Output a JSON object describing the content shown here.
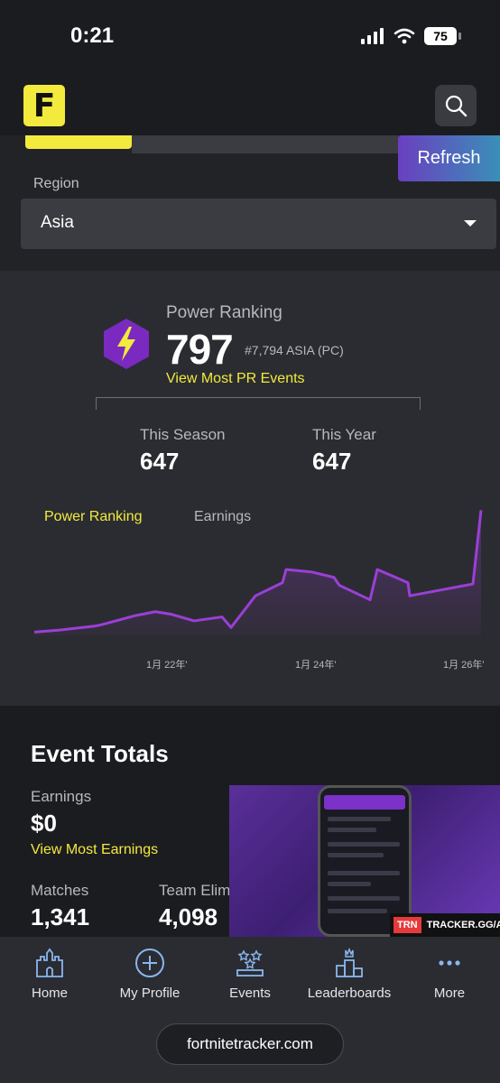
{
  "status_bar": {
    "time": "0:21",
    "battery": "75"
  },
  "header": {
    "logo_letter": "F"
  },
  "refresh_label": "Refresh",
  "region": {
    "label": "Region",
    "value": "Asia"
  },
  "power_ranking": {
    "title": "Power Ranking",
    "value": "797",
    "rank": "#7,794 ASIA (PC)",
    "link": "View Most PR Events",
    "season_label": "This Season",
    "season_value": "647",
    "year_label": "This Year",
    "year_value": "647",
    "tabs": [
      "Power Ranking",
      "Earnings"
    ],
    "accent_color": "#f2ea3c",
    "line_color": "#9b3fd6"
  },
  "chart_data": {
    "type": "line",
    "x_tick_labels": [
      "1月 22年'",
      "1月 24年'",
      "1月 26年'"
    ],
    "series": [
      {
        "values": [
          5,
          8,
          14,
          16,
          30,
          36,
          32,
          22,
          28,
          12,
          60,
          80,
          100,
          96,
          88,
          76,
          54,
          100,
          80,
          60,
          78,
          190
        ]
      }
    ]
  },
  "events": {
    "title": "Event Totals",
    "earnings_label": "Earnings",
    "earnings_value": "$0",
    "earnings_link": "View Most Earnings",
    "matches_label": "Matches",
    "matches_value": "1,341",
    "elims_label": "Team Elim",
    "elims_value": "4,098"
  },
  "ad": {
    "badge": "TRN",
    "url": "TRACKER.GG/APPS"
  },
  "nav": [
    {
      "label": "Home",
      "icon": "castle-icon"
    },
    {
      "label": "My Profile",
      "icon": "plus-circle-icon"
    },
    {
      "label": "Events",
      "icon": "events-icon"
    },
    {
      "label": "Leaderboards",
      "icon": "podium-icon"
    },
    {
      "label": "More",
      "icon": "more-dots-icon"
    }
  ],
  "browser": {
    "url": "fortnitetracker.com"
  }
}
